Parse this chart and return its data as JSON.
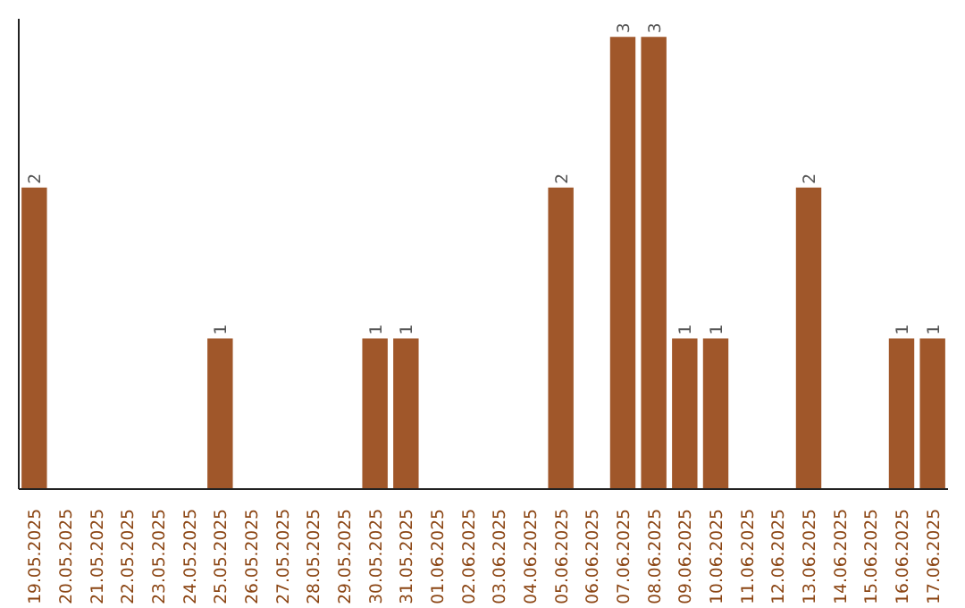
{
  "chart_data": {
    "type": "bar",
    "color": "#a0572a",
    "categories": [
      "19.05.2025",
      "20.05.2025",
      "21.05.2025",
      "22.05.2025",
      "23.05.2025",
      "24.05.2025",
      "25.05.2025",
      "26.05.2025",
      "27.05.2025",
      "28.05.2025",
      "29.05.2025",
      "30.05.2025",
      "31.05.2025",
      "01.06.2025",
      "02.06.2025",
      "03.06.2025",
      "04.06.2025",
      "05.06.2025",
      "06.06.2025",
      "07.06.2025",
      "08.06.2025",
      "09.06.2025",
      "10.06.2025",
      "11.06.2025",
      "12.06.2025",
      "13.06.2025",
      "14.06.2025",
      "15.06.2025",
      "16.06.2025",
      "17.06.2025"
    ],
    "values": [
      2,
      0,
      0,
      0,
      0,
      0,
      1,
      0,
      0,
      0,
      0,
      1,
      1,
      0,
      0,
      0,
      0,
      2,
      0,
      3,
      3,
      1,
      1,
      0,
      0,
      2,
      0,
      0,
      1,
      1
    ],
    "value_labels": [
      "2",
      null,
      null,
      null,
      null,
      null,
      "1",
      null,
      null,
      null,
      null,
      "1",
      "1",
      null,
      null,
      null,
      null,
      "2",
      null,
      "3",
      "3",
      "1",
      "1",
      null,
      null,
      "2",
      null,
      null,
      "1",
      "1"
    ],
    "grid": false
  }
}
